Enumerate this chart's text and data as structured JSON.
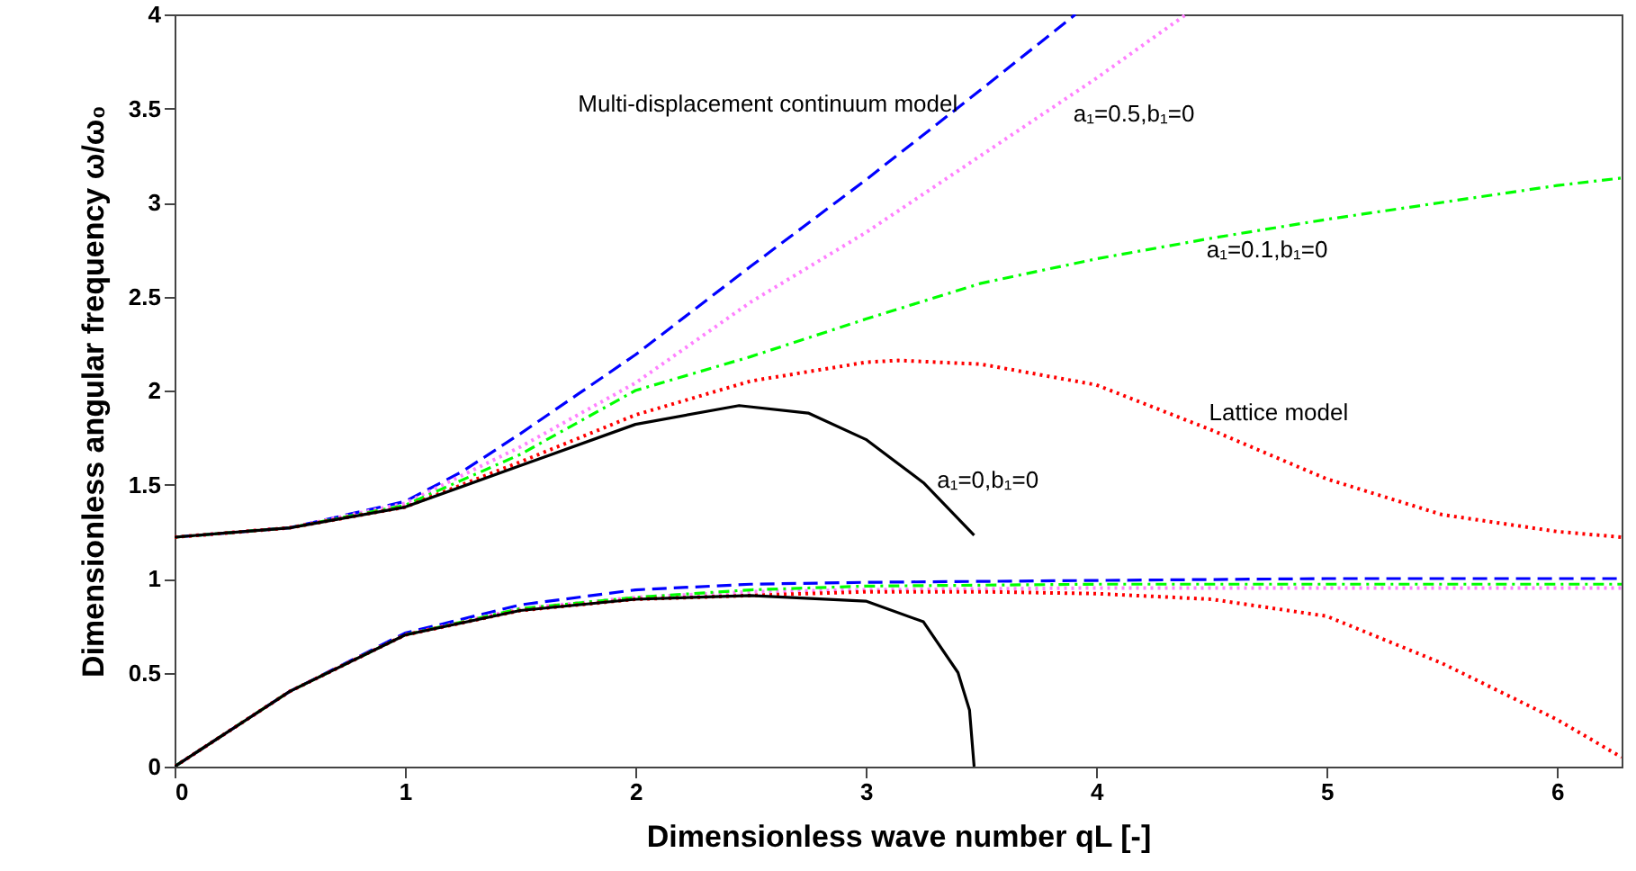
{
  "chart_data": {
    "type": "line",
    "xlabel": "Dimensionless wave number qL [-]",
    "ylabel": "Dimensionless angular frequency ω/ω₀",
    "xlim": [
      0,
      6.28
    ],
    "ylim": [
      0,
      4
    ],
    "xticks": [
      0,
      1,
      2,
      3,
      4,
      5,
      6
    ],
    "yticks": [
      0,
      {
        "value": 0.5,
        "label": "0.5"
      },
      1,
      {
        "value": 1.5,
        "label": "1.5"
      },
      2,
      {
        "value": 2.5,
        "label": "2.5"
      },
      3,
      {
        "value": 3.5,
        "label": "3.5"
      },
      4
    ],
    "grid": false,
    "marker": "none",
    "series": [
      {
        "color": "#0000ff",
        "line_style": "dashed",
        "x": [
          0,
          0.5,
          1,
          1.25,
          1.5,
          1.75,
          2,
          2.5,
          3,
          3.5,
          3.91
        ],
        "values": [
          1.22,
          1.27,
          1.41,
          1.57,
          1.77,
          1.98,
          2.19,
          2.66,
          3.12,
          3.6,
          4.0
        ]
      },
      {
        "color": "#ff80ff",
        "line_style": "dotted",
        "x": [
          0,
          0.5,
          1,
          1.5,
          2,
          2.5,
          3,
          3.5,
          4,
          4.39
        ],
        "values": [
          1.22,
          1.27,
          1.4,
          1.7,
          2.04,
          2.47,
          2.84,
          3.25,
          3.66,
          4.0
        ]
      },
      {
        "color": "#00ff00",
        "line_style": "dashdot",
        "x": [
          0,
          0.5,
          1,
          1.5,
          2,
          2.5,
          3,
          3.5,
          4,
          4.5,
          5,
          5.5,
          6,
          6.28
        ],
        "values": [
          1.22,
          1.27,
          1.39,
          1.66,
          2.0,
          2.18,
          2.38,
          2.57,
          2.7,
          2.81,
          2.91,
          3.0,
          3.09,
          3.13
        ]
      },
      {
        "color": "#ff0000",
        "line_style": "dotted",
        "x": [
          0,
          0.5,
          1,
          1.5,
          2,
          2.5,
          3,
          3.14,
          3.5,
          4,
          4.5,
          5,
          5.5,
          6,
          6.28
        ],
        "values": [
          1.22,
          1.27,
          1.38,
          1.62,
          1.87,
          2.05,
          2.15,
          2.16,
          2.14,
          2.03,
          1.79,
          1.53,
          1.34,
          1.25,
          1.22
        ]
      },
      {
        "color": "#000000",
        "line_style": "solid",
        "x": [
          0,
          0.5,
          1,
          1.5,
          2,
          2.45,
          2.75,
          3,
          3.25,
          3.47
        ],
        "values": [
          1.22,
          1.27,
          1.38,
          1.6,
          1.82,
          1.92,
          1.88,
          1.74,
          1.51,
          1.23
        ]
      },
      {
        "color": "#0000ff",
        "line_style": "dashed",
        "x": [
          0,
          0.5,
          1,
          1.5,
          2,
          2.5,
          3,
          4,
          5,
          6.28
        ],
        "values": [
          0,
          0.4,
          0.71,
          0.86,
          0.94,
          0.97,
          0.98,
          0.99,
          1.0,
          1.0
        ]
      },
      {
        "color": "#ff80ff",
        "line_style": "dotted",
        "x": [
          0,
          0.5,
          1,
          1.5,
          2,
          2.5,
          3,
          4,
          5,
          6.28
        ],
        "values": [
          0,
          0.4,
          0.7,
          0.84,
          0.9,
          0.93,
          0.94,
          0.95,
          0.95,
          0.95
        ]
      },
      {
        "color": "#00ff00",
        "line_style": "dashdot",
        "x": [
          0,
          0.5,
          1,
          1.5,
          2,
          2.5,
          3,
          4,
          5,
          6.28
        ],
        "values": [
          0,
          0.4,
          0.7,
          0.84,
          0.9,
          0.94,
          0.96,
          0.97,
          0.97,
          0.97
        ]
      },
      {
        "color": "#ff0000",
        "line_style": "dotted",
        "x": [
          0,
          0.5,
          1,
          1.5,
          2,
          2.5,
          3,
          3.5,
          4,
          4.5,
          5,
          5.5,
          6,
          6.28
        ],
        "values": [
          0,
          0.4,
          0.7,
          0.83,
          0.89,
          0.91,
          0.93,
          0.93,
          0.92,
          0.89,
          0.8,
          0.55,
          0.25,
          0.05
        ]
      },
      {
        "color": "#000000",
        "line_style": "solid",
        "x": [
          0,
          0.5,
          1,
          1.5,
          2,
          2.5,
          3,
          3.25,
          3.4,
          3.45,
          3.47
        ],
        "values": [
          0,
          0.4,
          0.7,
          0.83,
          0.89,
          0.91,
          0.88,
          0.77,
          0.5,
          0.3,
          0
        ]
      }
    ],
    "annotations": [
      "Multi-displacement continuum model",
      "a₁=0.5,b₁=0",
      "a₁=0.1,b₁=0",
      "Lattice model",
      "a₁=0,b₁=0"
    ]
  }
}
